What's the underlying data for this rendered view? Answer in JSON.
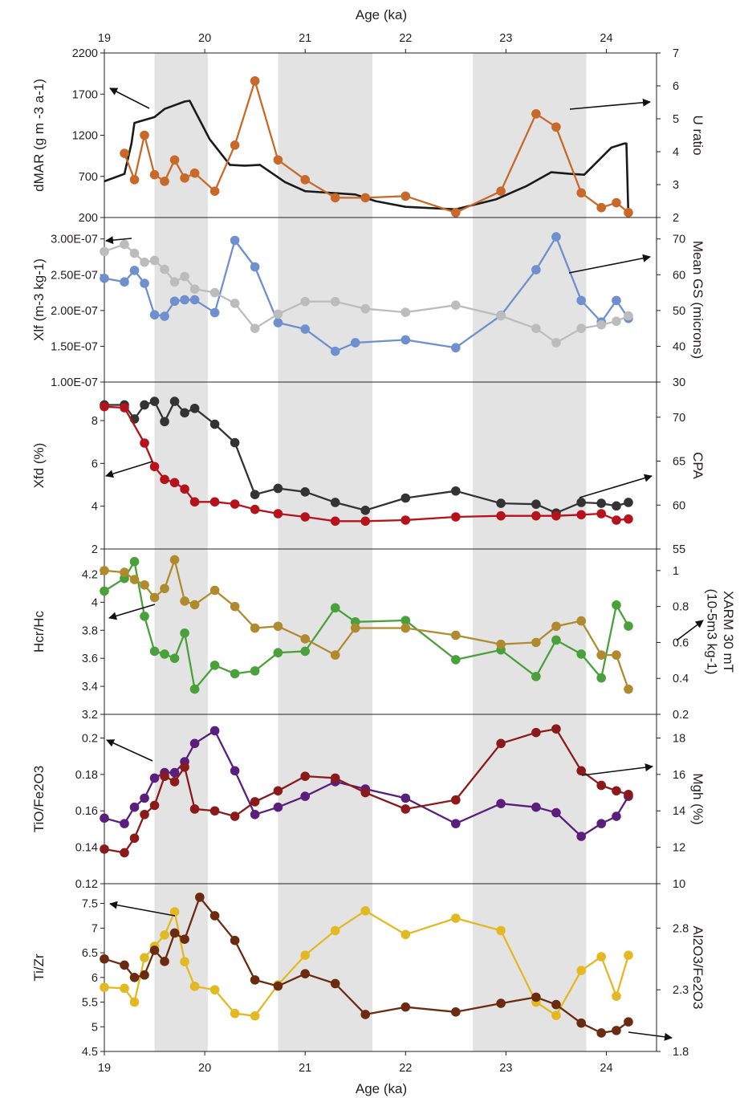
{
  "figure": {
    "x_axis_title_top": "Age (ka)",
    "x_axis_title_bottom": "Age (ka)",
    "x_ticks": [
      "19",
      "20",
      "21",
      "22",
      "23",
      "24"
    ],
    "xlim": [
      19,
      24.5
    ],
    "shaded_intervals": [
      [
        19.5,
        20.03
      ],
      [
        20.73,
        21.67
      ],
      [
        22.67,
        23.8
      ]
    ],
    "shade_color": "#e3e3e3"
  },
  "chart_data": [
    {
      "type": "line",
      "panel": 1,
      "ylabel_left": "dMAR (g m -3 a-1)",
      "ylabel_right": "U ratio",
      "left_ticks": [
        "200",
        "700",
        "1200",
        "1700",
        "2200"
      ],
      "right_ticks": [
        "2",
        "3",
        "4",
        "5",
        "6",
        "7"
      ],
      "left_ylim": [
        200,
        2200
      ],
      "right_ylim": [
        2,
        7
      ],
      "series": [
        {
          "color": "#1a1a1a",
          "axis": "left",
          "markers": false,
          "width": 2.6,
          "x": [
            19,
            19.2,
            19.27,
            19.3,
            19.5,
            19.6,
            19.8,
            19.85,
            20.05,
            20.25,
            20.4,
            20.55,
            20.8,
            21.0,
            21.5,
            21.7,
            22.0,
            22.5,
            22.9,
            23.2,
            23.45,
            23.65,
            23.78,
            24.05,
            24.18,
            24.2,
            24.22
          ],
          "y": [
            640,
            730,
            1100,
            1350,
            1420,
            1520,
            1610,
            1620,
            1150,
            840,
            830,
            840,
            630,
            520,
            480,
            400,
            330,
            300,
            420,
            580,
            750,
            730,
            720,
            1050,
            1100,
            1100,
            200
          ]
        },
        {
          "color": "#c8692a",
          "axis": "right",
          "markers": true,
          "x": [
            19.2,
            19.3,
            19.4,
            19.5,
            19.6,
            19.7,
            19.8,
            19.9,
            20.1,
            20.3,
            20.5,
            20.73,
            21.0,
            21.3,
            21.6,
            22.0,
            22.5,
            22.95,
            23.3,
            23.5,
            23.75,
            23.95,
            24.1,
            24.22
          ],
          "y": [
            3.95,
            3.15,
            4.5,
            3.3,
            3.1,
            3.75,
            3.2,
            3.35,
            2.8,
            4.2,
            6.15,
            3.75,
            3.15,
            2.6,
            2.6,
            2.65,
            2.15,
            2.8,
            5.15,
            4.75,
            2.75,
            2.3,
            2.45,
            2.15
          ]
        }
      ]
    },
    {
      "type": "line",
      "panel": 2,
      "ylabel_left": "Xlf (m-3 kg-1)",
      "ylabel_right": "Mean GS (microns)",
      "left_ticks": [
        "1.00E-07",
        "1.50E-07",
        "2.00E-07",
        "2.50E-07",
        "3.00E-07"
      ],
      "right_ticks": [
        "30",
        "40",
        "50",
        "60",
        "70"
      ],
      "left_ylim": [
        1e-07,
        3.3e-07
      ],
      "right_ylim": [
        30,
        76
      ],
      "series": [
        {
          "color": "#6f8fcf",
          "axis": "left",
          "markers": true,
          "x": [
            19,
            19.2,
            19.3,
            19.4,
            19.5,
            19.6,
            19.7,
            19.8,
            19.9,
            20.1,
            20.3,
            20.5,
            20.73,
            21.0,
            21.3,
            21.5,
            22.0,
            22.5,
            22.95,
            23.3,
            23.5,
            23.75,
            23.95,
            24.1,
            24.22
          ],
          "y": [
            2.45e-07,
            2.4e-07,
            2.56e-07,
            2.38e-07,
            1.94e-07,
            1.92e-07,
            2.13e-07,
            2.15e-07,
            2.15e-07,
            1.97e-07,
            2.98e-07,
            2.61e-07,
            1.83e-07,
            1.74e-07,
            1.43e-07,
            1.55e-07,
            1.59e-07,
            1.48e-07,
            1.93e-07,
            2.57e-07,
            3.03e-07,
            2.14e-07,
            1.84e-07,
            2.14e-07,
            1.89e-07
          ]
        },
        {
          "color": "#bcbcbc",
          "axis": "right",
          "markers": true,
          "x": [
            19,
            19.2,
            19.3,
            19.4,
            19.5,
            19.6,
            19.7,
            19.8,
            19.9,
            20.1,
            20.3,
            20.5,
            20.73,
            21.0,
            21.3,
            21.6,
            22.0,
            22.5,
            22.95,
            23.3,
            23.5,
            23.75,
            23.95,
            24.1,
            24.22
          ],
          "y": [
            66.5,
            68.5,
            66,
            63.5,
            64,
            61.5,
            58,
            59.5,
            56,
            55,
            52,
            45,
            49,
            52.5,
            52.5,
            50.5,
            49.5,
            51.5,
            48.5,
            45,
            41,
            45,
            46,
            47,
            48.5
          ]
        }
      ]
    },
    {
      "type": "line",
      "panel": 3,
      "ylabel_left": "Xfd (%)",
      "ylabel_right": "CPA",
      "left_ticks": [
        "2",
        "4",
        "6",
        "8"
      ],
      "right_ticks": [
        "55",
        "60",
        "65",
        "70"
      ],
      "left_ylim": [
        2,
        9.8
      ],
      "right_ylim": [
        55,
        74
      ],
      "series": [
        {
          "color": "#333333",
          "axis": "right",
          "markers": true,
          "x": [
            19,
            19.2,
            19.3,
            19.4,
            19.5,
            19.6,
            19.7,
            19.8,
            19.9,
            20.1,
            20.3,
            20.5,
            20.73,
            21.0,
            21.3,
            21.6,
            22.0,
            22.5,
            22.95,
            23.3,
            23.5,
            23.75,
            23.95,
            24.1,
            24.22
          ],
          "y": [
            71.4,
            71.4,
            69.8,
            71.4,
            71.8,
            69.5,
            71.8,
            70.5,
            71,
            69.2,
            67.1,
            61.2,
            61.9,
            61.5,
            60.3,
            59.4,
            60.8,
            61.6,
            60.2,
            60.1,
            59.1,
            60.3,
            60.2,
            59.9,
            60.3
          ]
        },
        {
          "color": "#b5121b",
          "axis": "left",
          "markers": true,
          "x": [
            19,
            19.2,
            19.4,
            19.5,
            19.6,
            19.7,
            19.8,
            19.9,
            20.1,
            20.3,
            20.5,
            20.73,
            21.0,
            21.3,
            21.6,
            22.0,
            22.5,
            22.95,
            23.3,
            23.5,
            23.75,
            23.95,
            24.1,
            24.22
          ],
          "y": [
            8.65,
            8.6,
            6.95,
            5.85,
            5.25,
            5.1,
            4.8,
            4.2,
            4.2,
            4.1,
            3.85,
            3.65,
            3.5,
            3.3,
            3.3,
            3.35,
            3.5,
            3.55,
            3.55,
            3.55,
            3.6,
            3.65,
            3.35,
            3.4
          ]
        }
      ]
    },
    {
      "type": "line",
      "panel": 4,
      "ylabel_left": "Hcr/Hc",
      "ylabel_right": "XARM 30 mT (10-5m3 kg-1)",
      "left_ticks": [
        "3.2",
        "3.4",
        "3.6",
        "3.8",
        "4",
        "4.2"
      ],
      "right_ticks": [
        "0.2",
        "0.4",
        "0.6",
        "0.8",
        "1"
      ],
      "left_ylim": [
        3.2,
        4.38
      ],
      "right_ylim": [
        0.2,
        1.12
      ],
      "series": [
        {
          "color": "#4aa03a",
          "axis": "left",
          "markers": true,
          "x": [
            19,
            19.2,
            19.3,
            19.4,
            19.5,
            19.6,
            19.7,
            19.8,
            19.9,
            20.1,
            20.3,
            20.5,
            20.73,
            21.0,
            21.3,
            21.5,
            22.0,
            22.5,
            22.95,
            23.3,
            23.5,
            23.75,
            23.95,
            24.1,
            24.22
          ],
          "y": [
            4.08,
            4.17,
            4.29,
            3.9,
            3.65,
            3.63,
            3.6,
            3.78,
            3.38,
            3.55,
            3.49,
            3.51,
            3.64,
            3.65,
            3.96,
            3.86,
            3.87,
            3.59,
            3.66,
            3.47,
            3.73,
            3.63,
            3.46,
            3.98,
            3.83
          ]
        },
        {
          "color": "#b08a2e",
          "axis": "right",
          "markers": true,
          "x": [
            19,
            19.2,
            19.3,
            19.4,
            19.5,
            19.6,
            19.7,
            19.8,
            19.9,
            20.1,
            20.3,
            20.5,
            20.73,
            21.0,
            21.3,
            21.5,
            22.0,
            22.5,
            22.95,
            23.3,
            23.5,
            23.75,
            23.95,
            24.1,
            24.22
          ],
          "y": [
            1.0,
            0.99,
            0.95,
            0.92,
            0.85,
            0.9,
            1.06,
            0.83,
            0.81,
            0.89,
            0.8,
            0.68,
            0.69,
            0.62,
            0.53,
            0.68,
            0.68,
            0.64,
            0.59,
            0.6,
            0.69,
            0.72,
            0.53,
            0.53,
            0.34
          ]
        }
      ]
    },
    {
      "type": "line",
      "panel": 5,
      "ylabel_left": "TiO/Fe2O3",
      "ylabel_right": "Mgh (%)",
      "left_ticks": [
        "0.12",
        "0.14",
        "0.16",
        "0.18",
        "0.2"
      ],
      "right_ticks": [
        "10",
        "12",
        "14",
        "16",
        "18"
      ],
      "left_ylim": [
        0.12,
        0.213
      ],
      "right_ylim": [
        10,
        19.3
      ],
      "series": [
        {
          "color": "#5a1e7c",
          "axis": "left",
          "markers": true,
          "x": [
            19,
            19.2,
            19.3,
            19.4,
            19.5,
            19.6,
            19.7,
            19.8,
            19.9,
            20.1,
            20.3,
            20.5,
            20.73,
            21.0,
            21.3,
            21.6,
            22.0,
            22.5,
            22.95,
            23.3,
            23.5,
            23.75,
            23.95,
            24.1,
            24.22
          ],
          "y": [
            0.156,
            0.153,
            0.162,
            0.167,
            0.178,
            0.181,
            0.181,
            0.187,
            0.197,
            0.204,
            0.182,
            0.158,
            0.162,
            0.168,
            0.176,
            0.172,
            0.167,
            0.153,
            0.164,
            0.162,
            0.159,
            0.146,
            0.153,
            0.157,
            0.168
          ]
        },
        {
          "color": "#8c1a1a",
          "axis": "right",
          "markers": true,
          "x": [
            19,
            19.2,
            19.3,
            19.4,
            19.5,
            19.6,
            19.7,
            19.8,
            19.9,
            20.1,
            20.3,
            20.5,
            20.73,
            21.0,
            21.3,
            21.6,
            22.0,
            22.5,
            22.95,
            23.3,
            23.5,
            23.75,
            23.95,
            24.1,
            24.22
          ],
          "y": [
            11.9,
            11.7,
            12.5,
            13.8,
            14.3,
            15.9,
            15.6,
            16.4,
            14.1,
            14.0,
            13.7,
            14.5,
            15.1,
            15.9,
            15.8,
            15.0,
            14.1,
            14.6,
            17.7,
            18.3,
            18.5,
            16.2,
            15.4,
            15.1,
            14.9
          ]
        }
      ]
    },
    {
      "type": "line",
      "panel": 6,
      "ylabel_left": "Ti/Zr",
      "ylabel_right": "Al2O3/Fe2O3",
      "left_ticks": [
        "4.5",
        "5",
        "5.5",
        "6",
        "6.5",
        "7",
        "7.5"
      ],
      "right_ticks": [
        "1.8",
        "2.3",
        "2.8"
      ],
      "left_ylim": [
        4.5,
        7.9
      ],
      "right_ylim": [
        1.8,
        3.16
      ],
      "series": [
        {
          "color": "#e2b923",
          "axis": "left",
          "markers": true,
          "x": [
            19,
            19.2,
            19.3,
            19.4,
            19.5,
            19.6,
            19.7,
            19.8,
            19.9,
            20.1,
            20.3,
            20.5,
            20.73,
            21.0,
            21.3,
            21.6,
            22.0,
            22.5,
            22.95,
            23.3,
            23.5,
            23.75,
            23.95,
            24.1,
            24.22
          ],
          "y": [
            5.8,
            5.78,
            5.5,
            6.4,
            6.63,
            6.86,
            7.33,
            6.32,
            5.82,
            5.75,
            5.27,
            5.22,
            5.85,
            6.45,
            6.95,
            7.35,
            6.87,
            7.2,
            6.95,
            5.5,
            5.23,
            6.14,
            6.42,
            5.62,
            6.45
          ]
        },
        {
          "color": "#6b2b10",
          "axis": "right",
          "markers": true,
          "x": [
            19,
            19.2,
            19.3,
            19.4,
            19.5,
            19.6,
            19.7,
            19.8,
            19.95,
            20.1,
            20.3,
            20.5,
            20.73,
            21.0,
            21.3,
            21.6,
            22.0,
            22.5,
            22.95,
            23.3,
            23.5,
            23.75,
            23.95,
            24.1,
            24.22
          ],
          "y": [
            2.55,
            2.5,
            2.4,
            2.42,
            2.62,
            2.53,
            2.76,
            2.71,
            3.05,
            2.9,
            2.7,
            2.38,
            2.33,
            2.43,
            2.35,
            2.1,
            2.16,
            2.12,
            2.19,
            2.24,
            2.18,
            2.03,
            1.95,
            1.97,
            2.04
          ]
        }
      ]
    }
  ]
}
